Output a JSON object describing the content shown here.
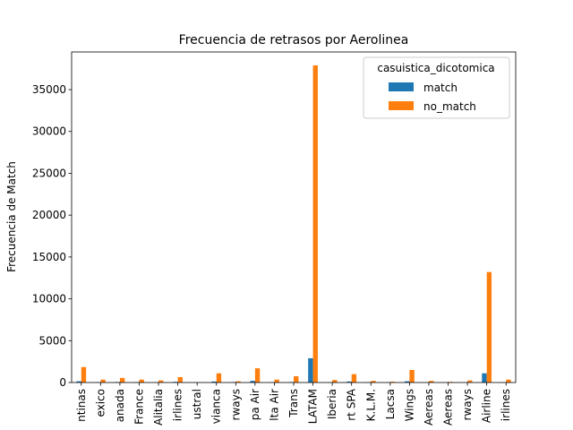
{
  "chart_data": {
    "type": "bar",
    "title": "Frecuencia de retrasos por Aerolinea",
    "xlabel": "",
    "ylabel": "Frecuencia de Match",
    "ylim": [
      0,
      39500
    ],
    "yticks": [
      0,
      5000,
      10000,
      15000,
      20000,
      25000,
      30000,
      35000
    ],
    "grid": false,
    "legend": {
      "title": "casuistica_dicotomica",
      "placement": "top-right"
    },
    "categories": [
      "ntinas",
      "exico",
      "anada",
      "France",
      "Alitalia",
      "irlines",
      "ustral",
      "vianca",
      "rways",
      "pa Air",
      "lta Air",
      "Trans",
      "LATAM",
      "Iberia",
      "rt SPA",
      "K.L.M.",
      "Lacsa",
      "Wings",
      "Aereas",
      "Aereas",
      "rways",
      "Airline",
      "irlines"
    ],
    "series": [
      {
        "name": "match",
        "color": "#1f77b4",
        "values": [
          150,
          40,
          60,
          50,
          30,
          80,
          10,
          120,
          50,
          200,
          30,
          60,
          2900,
          30,
          120,
          40,
          20,
          150,
          20,
          10,
          30,
          1100,
          30
        ]
      },
      {
        "name": "no_match",
        "color": "#ff7f0e",
        "values": [
          1850,
          350,
          550,
          350,
          250,
          650,
          40,
          1100,
          150,
          1700,
          350,
          750,
          37900,
          300,
          1000,
          200,
          100,
          1500,
          200,
          80,
          250,
          13200,
          350
        ]
      }
    ]
  }
}
